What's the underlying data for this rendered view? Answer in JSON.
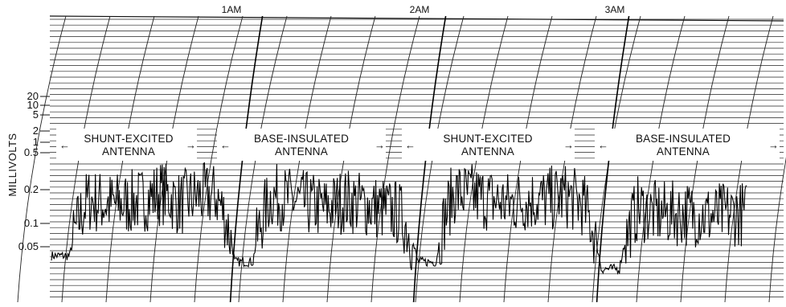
{
  "chart_data": {
    "type": "line",
    "ylabel": "MILLIVOLTS",
    "y_scale": "log",
    "y_ticks": [
      "20",
      "10",
      "5",
      "2",
      "1",
      "0.5",
      "0.2",
      "0.1",
      "0.05"
    ],
    "time_labels": [
      "1AM",
      "2AM",
      "3AM"
    ],
    "segments": [
      {
        "label_line1": "SHUNT-EXCITED",
        "label_line2": "ANTENNA"
      },
      {
        "label_line1": "BASE-INSULATED",
        "label_line2": "ANTENNA"
      },
      {
        "label_line1": "SHUNT-EXCITED",
        "label_line2": "ANTENNA"
      },
      {
        "label_line1": "BASE-INSULATED",
        "label_line2": "ANTENNA"
      }
    ],
    "series": [
      {
        "x_hours": [
          0.0,
          0.1,
          0.2,
          0.3,
          0.4,
          0.5,
          0.6,
          0.7,
          0.8,
          0.9,
          1.0,
          1.1,
          1.2,
          1.3,
          1.4,
          1.5,
          1.6,
          1.7,
          1.8,
          1.9,
          2.0,
          2.1,
          2.2,
          2.3,
          2.4,
          2.5,
          2.6,
          2.7,
          2.8,
          2.9,
          3.0,
          3.1,
          3.2,
          3.3,
          3.4,
          3.5,
          3.6,
          3.7,
          3.8
        ],
        "mv": [
          0.045,
          0.045,
          0.13,
          0.12,
          0.12,
          0.13,
          0.15,
          0.12,
          0.14,
          0.14,
          0.04,
          0.04,
          0.14,
          0.13,
          0.12,
          0.11,
          0.13,
          0.12,
          0.11,
          0.1,
          0.04,
          0.04,
          0.15,
          0.14,
          0.13,
          0.12,
          0.13,
          0.13,
          0.14,
          0.12,
          0.035,
          0.035,
          0.11,
          0.1,
          0.1,
          0.1,
          0.095,
          0.1,
          0.1
        ]
      }
    ]
  }
}
